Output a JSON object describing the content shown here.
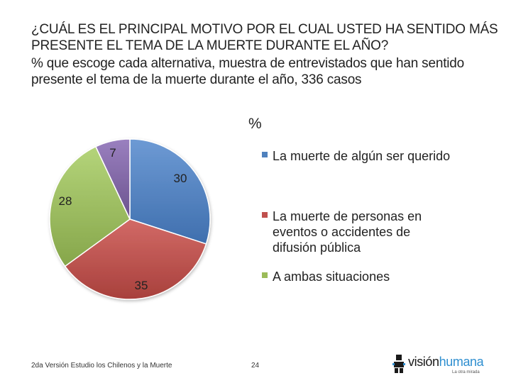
{
  "header": {
    "title": "¿CUÁL ES EL PRINCIPAL MOTIVO POR EL CUAL USTED HA SENTIDO MÁS PRESENTE EL TEMA DE LA MUERTE DURANTE EL AÑO?",
    "subtitle": "% que escoge cada alternativa,  muestra de entrevistados que han sentido presente el tema de la muerte durante el año, 336 casos"
  },
  "chart_data": {
    "type": "pie",
    "title": "%",
    "categories": [
      "La muerte de algún ser querido",
      "La muerte de personas en eventos o accidentes de difusión pública",
      "A ambas situaciones",
      ""
    ],
    "values": [
      30,
      35,
      28,
      7
    ],
    "data_labels": [
      "30",
      "35",
      "28",
      "7"
    ],
    "colors": [
      "#4f81bd",
      "#c0504d",
      "#9bbb59",
      "#8064a2"
    ],
    "legend": [
      {
        "lines": [
          "La muerte de algún ser querido"
        ],
        "color": "#4f81bd"
      },
      {
        "lines": [
          "La muerte de personas en",
          "eventos o accidentes de",
          "difusión pública"
        ],
        "color": "#c0504d"
      },
      {
        "lines": [
          "A ambas situaciones"
        ],
        "color": "#9bbb59"
      }
    ],
    "legend_position": "right"
  },
  "footer": {
    "study": "2da Versión Estudio los Chilenos y la Muerte",
    "page": "24"
  },
  "logo": {
    "name_part1": "visión",
    "name_part2": "humana",
    "tagline": "La otra mirada",
    "icon": "person-figure-icon"
  }
}
